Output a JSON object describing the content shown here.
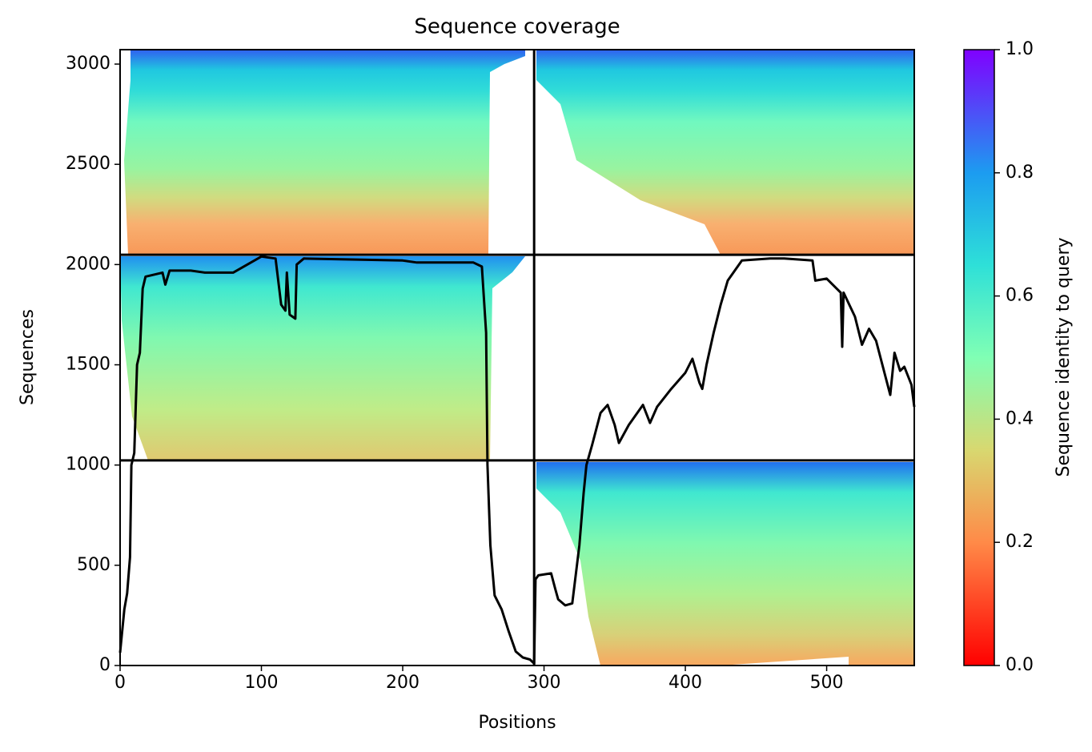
{
  "chart_data": {
    "type": "line",
    "title": "Sequence coverage",
    "xlabel": "Positions",
    "ylabel": "Sequences",
    "colorbar_label": "Sequence identity to query",
    "x": [
      0,
      3,
      5,
      7,
      8,
      10,
      12,
      14,
      16,
      18,
      30,
      32,
      35,
      50,
      60,
      80,
      100,
      110,
      114,
      117,
      118,
      120,
      124,
      125,
      130,
      200,
      210,
      250,
      256,
      259,
      260,
      262,
      265,
      270,
      275,
      280,
      285,
      290,
      293,
      294,
      296,
      305,
      308,
      310,
      315,
      320,
      325,
      328,
      330,
      334,
      340,
      345,
      350,
      353,
      360,
      370,
      375,
      380,
      390,
      400,
      405,
      410,
      412,
      415,
      420,
      425,
      430,
      440,
      460,
      470,
      490,
      492,
      500,
      510,
      511,
      512,
      520,
      525,
      530,
      535,
      545,
      548,
      552,
      555,
      560,
      562
    ],
    "values": [
      64,
      280,
      360,
      540,
      1000,
      1060,
      1500,
      1560,
      1880,
      1940,
      1960,
      1900,
      1970,
      1970,
      1960,
      1960,
      2040,
      2030,
      1800,
      1770,
      1960,
      1750,
      1730,
      2000,
      2030,
      2020,
      2010,
      2010,
      1990,
      1660,
      1000,
      600,
      350,
      280,
      170,
      70,
      40,
      30,
      10,
      430,
      450,
      460,
      380,
      330,
      300,
      310,
      600,
      860,
      1000,
      1100,
      1260,
      1300,
      1200,
      1110,
      1200,
      1300,
      1210,
      1290,
      1380,
      1460,
      1530,
      1410,
      1380,
      1500,
      1660,
      1800,
      1920,
      2020,
      2030,
      2030,
      2020,
      1920,
      1930,
      1860,
      1590,
      1860,
      1740,
      1600,
      1680,
      1620,
      1350,
      1560,
      1470,
      1490,
      1400,
      1290
    ],
    "color": "#000000",
    "xlim": [
      0,
      562
    ],
    "xticks": [
      0,
      100,
      200,
      300,
      400,
      500
    ],
    "ylim": [
      0,
      3072
    ],
    "yticks": [
      0,
      500,
      1000,
      1500,
      2000,
      2500,
      3000
    ],
    "clim": [
      0,
      1
    ],
    "cticks": [
      {
        "value": 0,
        "label": "0.0"
      },
      0.2,
      0.4,
      0.6,
      0.8,
      {
        "value": 1,
        "label": "1.0"
      }
    ],
    "vlines": [
      293
    ],
    "hlines": [
      1023,
      2049
    ]
  }
}
